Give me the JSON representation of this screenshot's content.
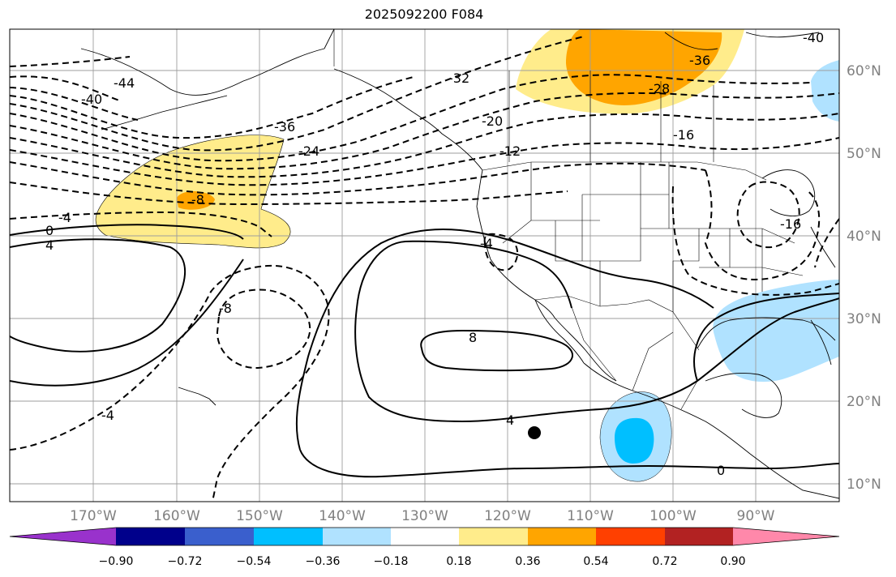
{
  "title": "2025092200 F084",
  "lon_labels": [
    "170°W",
    "160°W",
    "150°W",
    "140°W",
    "130°W",
    "120°W",
    "110°W",
    "100°W",
    "90°W"
  ],
  "lat_labels": [
    "60°N",
    "50°N",
    "40°N",
    "30°N",
    "20°N",
    "10°N"
  ],
  "contour_labels": {
    "n40_w": "-40",
    "n44": "-44",
    "n40_e": "-40",
    "n36_w": "-36",
    "n36_e": "-36",
    "n32": "-32",
    "n28": "-28",
    "n24": "-24",
    "n20": "-20",
    "n16_e": "-16",
    "n16_se": "-16",
    "n12": "-12",
    "n8_w": "-8",
    "n4_w": "-4",
    "n4_cal": "-4",
    "zero_w": "0",
    "pos4_w": "4",
    "n8_c": "-8",
    "pos8": "8",
    "pos4_c": "4",
    "n4_s": "-4",
    "zero_s": "0"
  },
  "colorbar": {
    "ticks": [
      "−0.90",
      "−0.72",
      "−0.54",
      "−0.36",
      "−0.18",
      "0.18",
      "0.36",
      "0.54",
      "0.72",
      "0.90"
    ],
    "colors": [
      "#9932cc",
      "#00008b",
      "#3a5fcd",
      "#00bfff",
      "#b0e2ff",
      "#ffffff",
      "#ffec8b",
      "#ffa500",
      "#ff4000",
      "#b22222",
      "#ff88aa"
    ]
  },
  "marker": "storm-center"
}
